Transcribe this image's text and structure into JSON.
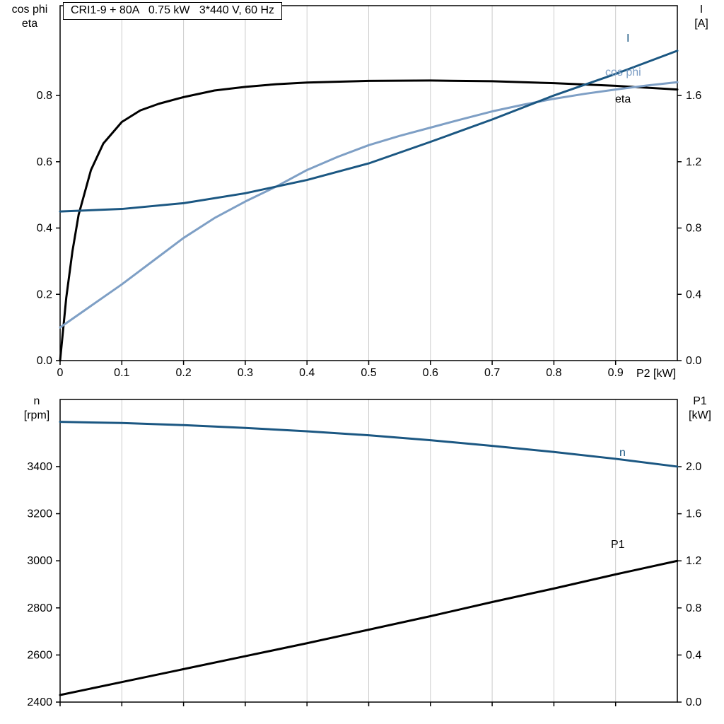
{
  "title": "CRI1-9 + 80A   0.75 kW   3*440 V, 60 Hz",
  "labels": {
    "top_left": [
      "cos phi",
      "eta"
    ],
    "top_right": [
      "I",
      "[A]"
    ],
    "x_axis_title": "P2 [kW]",
    "bottom_left": [
      "n",
      "[rpm]"
    ],
    "bottom_right": [
      "P1",
      "[kW]"
    ]
  },
  "colors": {
    "dark_blue": "#1b5782",
    "light_blue": "#7e9fc5",
    "black": "#000000",
    "grid": "#cccccc"
  },
  "chart_data": [
    {
      "type": "line",
      "title": "CRI1-9 + 80A   0.75 kW   3*440 V, 60 Hz",
      "grid": "vertical",
      "legend_position": "right-end-of-curves",
      "x": {
        "title": "P2 [kW]",
        "range": [
          0,
          1.0
        ],
        "ticks": [
          0,
          0.1,
          0.2,
          0.3,
          0.4,
          0.5,
          0.6,
          0.7,
          0.8,
          0.9
        ],
        "labels": [
          "0",
          "0.1",
          "0.2",
          "0.3",
          "0.4",
          "0.5",
          "0.6",
          "0.7",
          "0.8",
          "0.9"
        ]
      },
      "left": {
        "title_lines": [
          "cos phi",
          "eta"
        ],
        "range": [
          0,
          1.071
        ],
        "ticks": [
          0,
          0.2,
          0.4,
          0.6,
          0.8
        ],
        "labels": [
          "0.0",
          "0.2",
          "0.4",
          "0.6",
          "0.8"
        ]
      },
      "right": {
        "title_lines": [
          "I",
          "[A]"
        ],
        "range": [
          0,
          2.142
        ],
        "ticks": [
          0,
          0.4,
          0.8,
          1.2,
          1.6
        ],
        "labels": [
          "0.0",
          "0.4",
          "0.8",
          "1.2",
          "1.6"
        ]
      },
      "series": [
        {
          "name": "eta",
          "label": "eta",
          "axis": "left",
          "color": "#000000",
          "x": [
            0,
            0.01,
            0.02,
            0.03,
            0.05,
            0.07,
            0.1,
            0.13,
            0.16,
            0.2,
            0.25,
            0.3,
            0.35,
            0.4,
            0.5,
            0.6,
            0.7,
            0.8,
            0.9,
            1.0
          ],
          "y": [
            0,
            0.19,
            0.33,
            0.44,
            0.575,
            0.655,
            0.72,
            0.755,
            0.775,
            0.795,
            0.815,
            0.826,
            0.834,
            0.839,
            0.844,
            0.845,
            0.843,
            0.837,
            0.829,
            0.818
          ]
        },
        {
          "name": "cos_phi",
          "label": "cos phi",
          "axis": "left",
          "color": "#7e9fc5",
          "x": [
            0,
            0.05,
            0.1,
            0.15,
            0.2,
            0.25,
            0.3,
            0.35,
            0.4,
            0.45,
            0.5,
            0.55,
            0.6,
            0.65,
            0.7,
            0.75,
            0.8,
            0.85,
            0.9,
            0.95,
            1.0
          ],
          "y": [
            0.1,
            0.165,
            0.23,
            0.3,
            0.37,
            0.43,
            0.48,
            0.525,
            0.575,
            0.615,
            0.65,
            0.678,
            0.703,
            0.728,
            0.752,
            0.772,
            0.79,
            0.805,
            0.818,
            0.83,
            0.84
          ]
        },
        {
          "name": "I",
          "label": "I",
          "axis": "right",
          "color": "#1b5782",
          "x": [
            0,
            0.1,
            0.2,
            0.3,
            0.35,
            0.4,
            0.5,
            0.6,
            0.7,
            0.8,
            0.9,
            1.0
          ],
          "y": [
            0.9,
            0.915,
            0.95,
            1.01,
            1.05,
            1.09,
            1.19,
            1.32,
            1.455,
            1.6,
            1.73,
            1.87
          ]
        }
      ]
    },
    {
      "type": "line",
      "grid": "vertical",
      "x": {
        "title": "",
        "range": [
          0,
          1.0
        ],
        "ticks": [
          0,
          0.1,
          0.2,
          0.3,
          0.4,
          0.5,
          0.6,
          0.7,
          0.8,
          0.9
        ],
        "labels": []
      },
      "left": {
        "title_lines": [
          "n",
          "[rpm]"
        ],
        "range": [
          2400,
          3685
        ],
        "ticks": [
          2400,
          2600,
          2800,
          3000,
          3200,
          3400
        ],
        "labels": [
          "2400",
          "2600",
          "2800",
          "3000",
          "3200",
          "3400"
        ]
      },
      "right": {
        "title_lines": [
          "P1",
          "[kW]"
        ],
        "range": [
          0,
          2.571
        ],
        "ticks": [
          0,
          0.4,
          0.8,
          1.2,
          1.6,
          2.0
        ],
        "labels": [
          "0.0",
          "0.4",
          "0.8",
          "1.2",
          "1.6",
          "2.0"
        ]
      },
      "series": [
        {
          "name": "n",
          "label": "n",
          "axis": "left",
          "color": "#1b5782",
          "x": [
            0,
            0.1,
            0.2,
            0.3,
            0.4,
            0.5,
            0.6,
            0.7,
            0.8,
            0.9,
            1.0
          ],
          "y": [
            3590,
            3585,
            3576,
            3564,
            3550,
            3533,
            3512,
            3488,
            3462,
            3433,
            3400
          ]
        },
        {
          "name": "P1",
          "label": "P1",
          "axis": "right",
          "color": "#000000",
          "x": [
            0,
            0.1,
            0.2,
            0.3,
            0.4,
            0.5,
            0.6,
            0.7,
            0.8,
            0.9,
            1.0
          ],
          "y": [
            0.06,
            0.17,
            0.28,
            0.39,
            0.5,
            0.615,
            0.73,
            0.85,
            0.965,
            1.085,
            1.2
          ]
        }
      ]
    }
  ]
}
